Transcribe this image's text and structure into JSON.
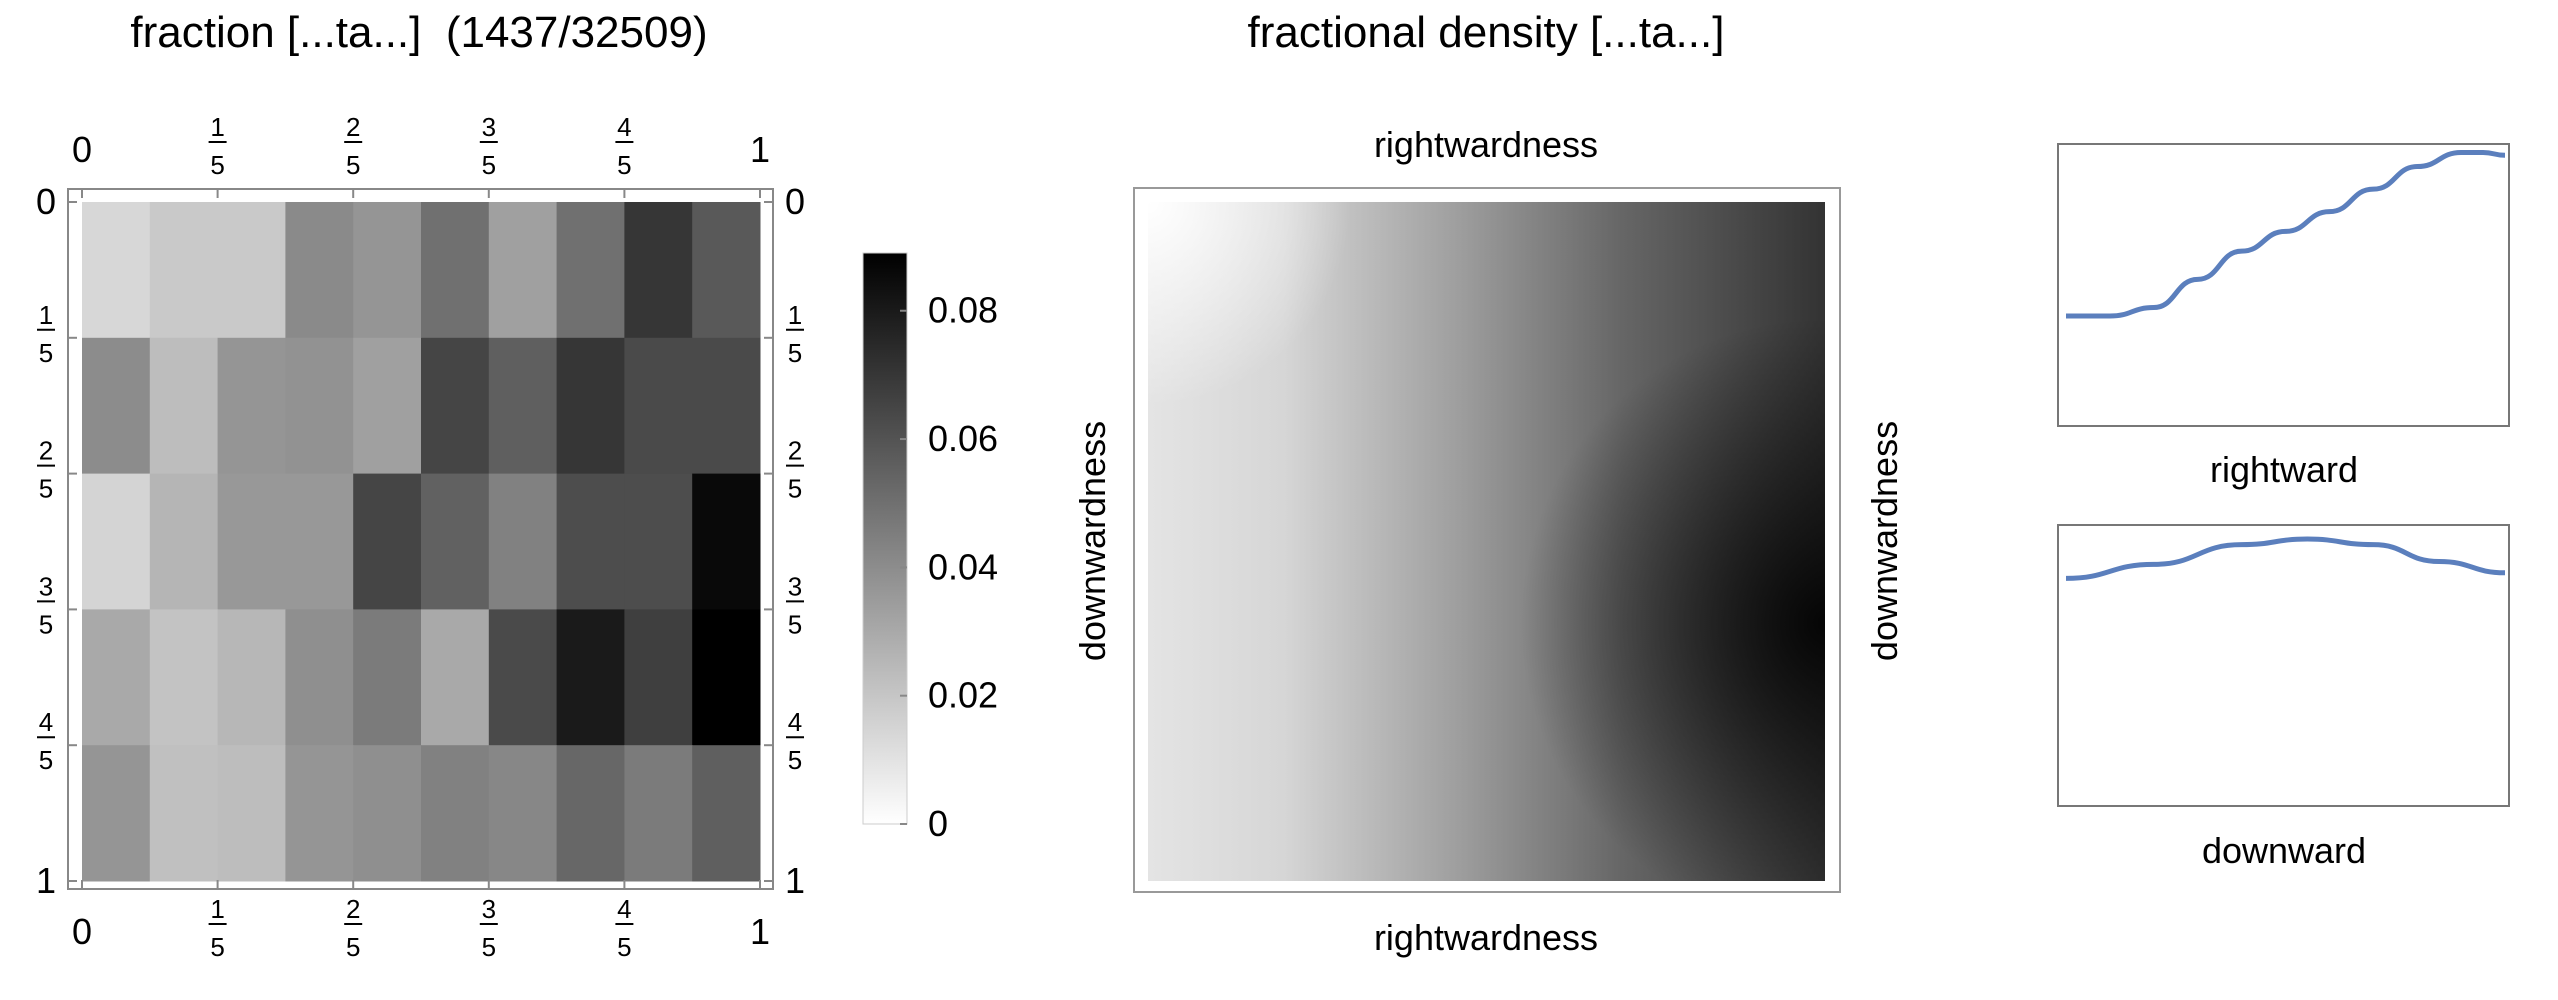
{
  "chart_data": [
    {
      "type": "heatmap",
      "title": "fraction [...ta...]  (1437/32509)",
      "x_ticks": [
        "0",
        "1/5",
        "2/5",
        "3/5",
        "4/5",
        "1"
      ],
      "y_ticks": [
        "0",
        "1/5",
        "2/5",
        "3/5",
        "4/5",
        "1"
      ],
      "xlim": [
        0,
        1
      ],
      "ylim": [
        0,
        1
      ],
      "rows": 5,
      "cols": 10,
      "values": [
        [
          0.014,
          0.019,
          0.019,
          0.041,
          0.037,
          0.05,
          0.033,
          0.05,
          0.07,
          0.058
        ],
        [
          0.04,
          0.023,
          0.037,
          0.038,
          0.033,
          0.065,
          0.056,
          0.07,
          0.063,
          0.063
        ],
        [
          0.015,
          0.026,
          0.036,
          0.036,
          0.065,
          0.055,
          0.044,
          0.062,
          0.062,
          0.086
        ],
        [
          0.03,
          0.021,
          0.025,
          0.039,
          0.046,
          0.03,
          0.063,
          0.08,
          0.067,
          0.089
        ],
        [
          0.037,
          0.022,
          0.023,
          0.037,
          0.039,
          0.044,
          0.042,
          0.053,
          0.046,
          0.056
        ]
      ],
      "colorbar": {
        "range": [
          0,
          0.089
        ],
        "ticks": [
          "0",
          "0.02",
          "0.04",
          "0.06",
          "0.08"
        ],
        "tick_values": [
          0,
          0.02,
          0.04,
          0.06,
          0.08
        ]
      }
    },
    {
      "type": "heatmap",
      "title": "fractional density [...ta...]",
      "xlabel_top": "rightwardness",
      "xlabel_bottom": "rightwardness",
      "ylabel_left": "downwardness",
      "ylabel_right": "downwardness"
    },
    {
      "type": "line",
      "xlabel": "rightward",
      "color": "#5b7fbd",
      "x": [
        0,
        0.1,
        0.2,
        0.3,
        0.4,
        0.5,
        0.6,
        0.7,
        0.8,
        0.9,
        0.95,
        1
      ],
      "y": [
        0.39,
        0.39,
        0.42,
        0.52,
        0.62,
        0.69,
        0.76,
        0.84,
        0.92,
        0.97,
        0.97,
        0.96
      ]
    },
    {
      "type": "line",
      "xlabel": "downward",
      "color": "#5b7fbd",
      "x": [
        0,
        0.2,
        0.4,
        0.55,
        0.7,
        0.85,
        1
      ],
      "y": [
        0.81,
        0.86,
        0.93,
        0.95,
        0.93,
        0.87,
        0.83
      ]
    }
  ]
}
